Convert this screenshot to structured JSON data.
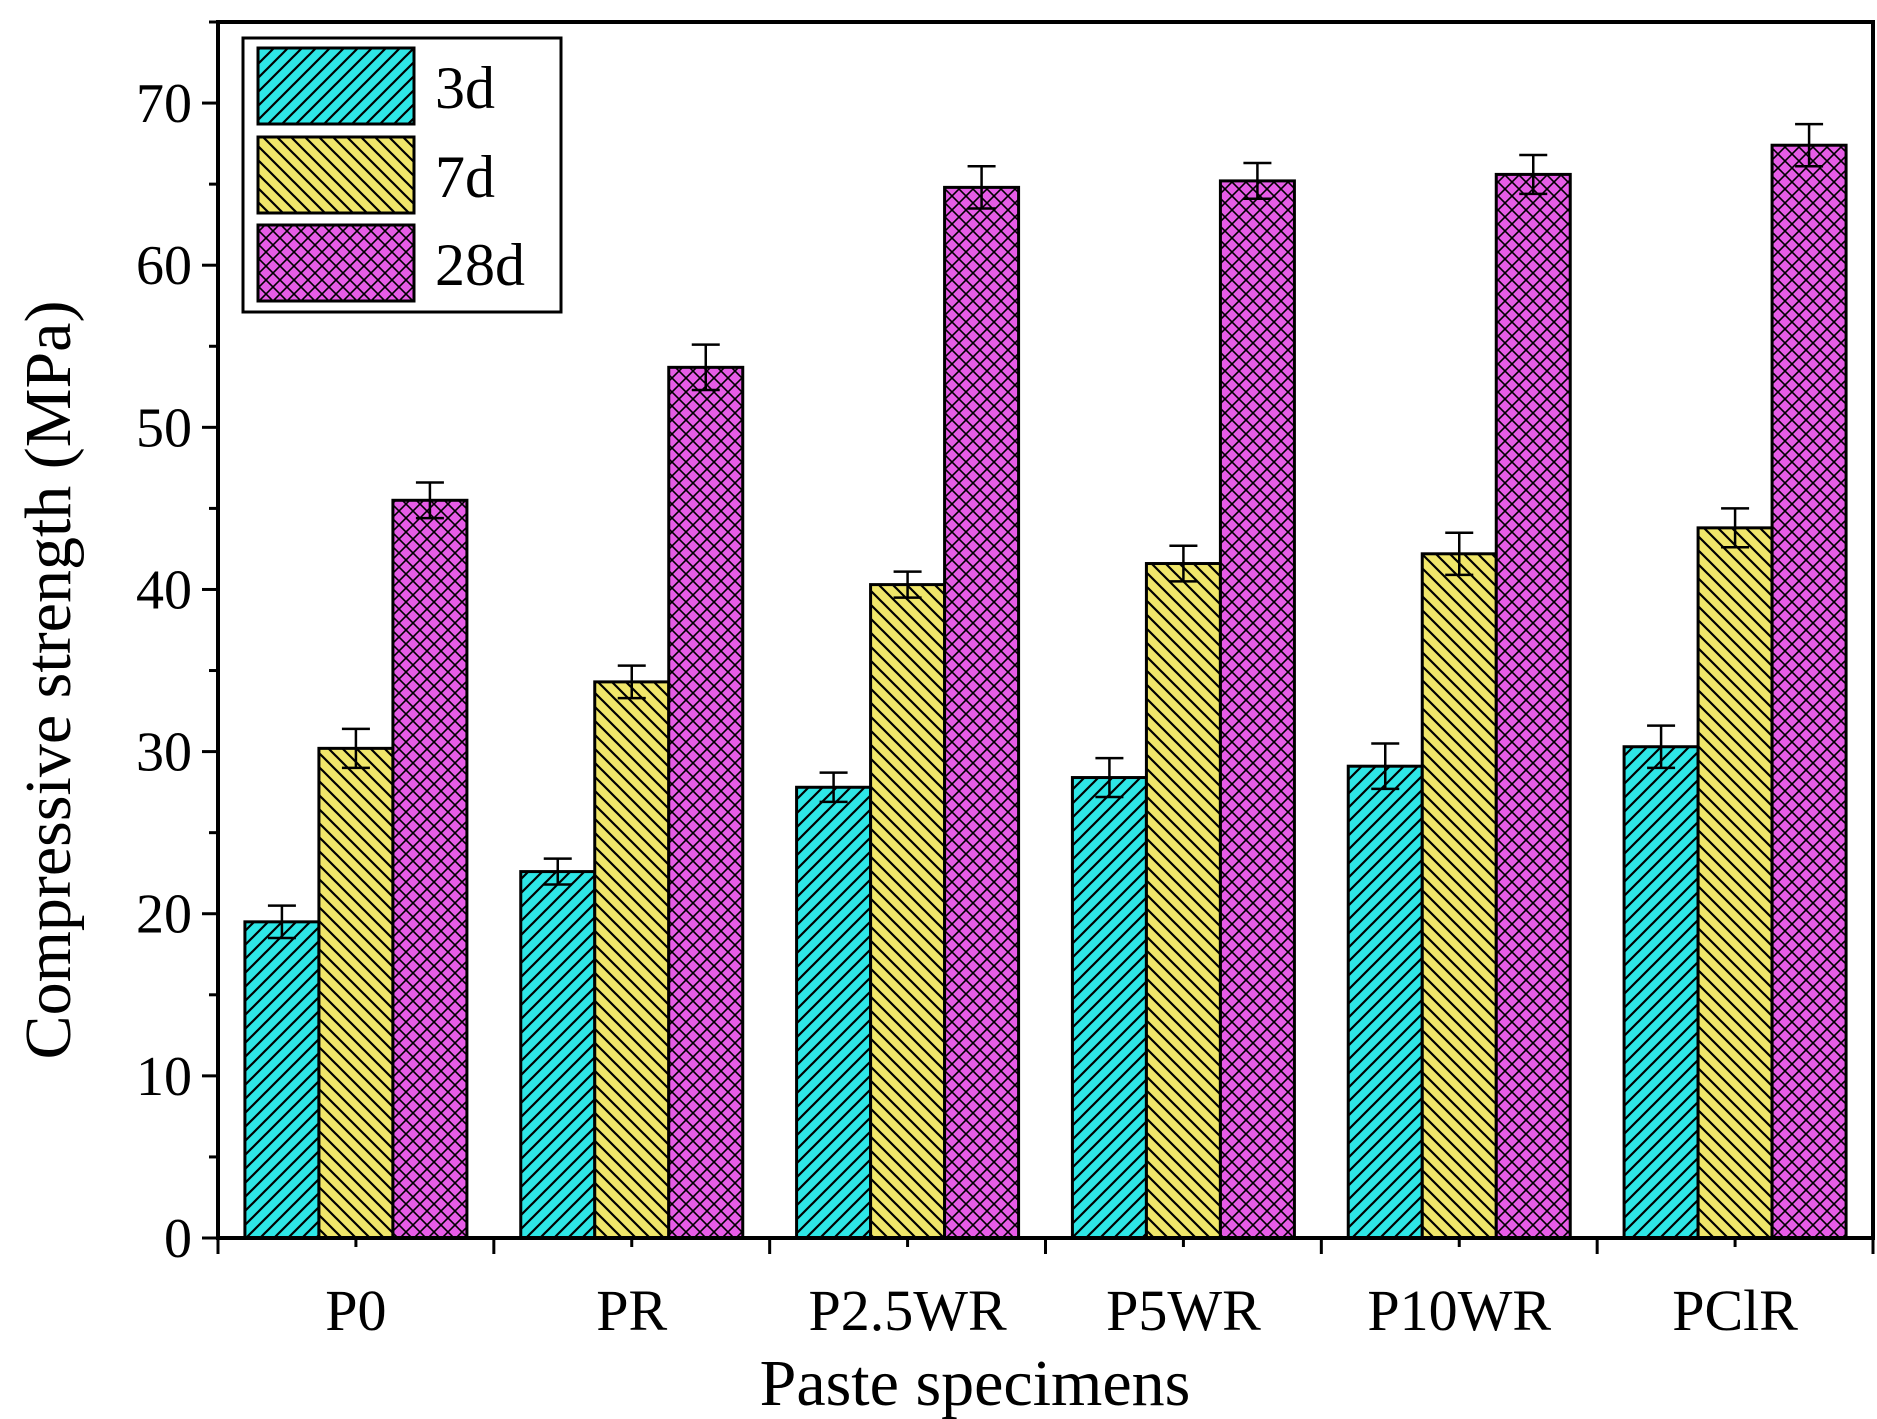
{
  "chart_data": {
    "type": "bar",
    "title": "",
    "xlabel": "Paste specimens",
    "ylabel": "Compressive strength (MPa)",
    "ylim": [
      0,
      75
    ],
    "yticks": [
      0,
      10,
      20,
      30,
      40,
      50,
      60,
      70
    ],
    "grid": false,
    "legend_position": "top-left",
    "categories": [
      "P0",
      "PR",
      "P2.5WR",
      "P5WR",
      "P10WR",
      "PClR"
    ],
    "series": [
      {
        "name": "3d",
        "color": "#2ee6e6",
        "hatch": "diagonal-right",
        "values": [
          19.5,
          22.6,
          27.8,
          28.4,
          29.1,
          30.3
        ],
        "errors": [
          1.0,
          0.8,
          0.9,
          1.2,
          1.4,
          1.3
        ]
      },
      {
        "name": "7d",
        "color": "#f0e66a",
        "hatch": "diagonal-left",
        "values": [
          30.2,
          34.3,
          40.3,
          41.6,
          42.2,
          43.8
        ],
        "errors": [
          1.2,
          1.0,
          0.8,
          1.1,
          1.3,
          1.2
        ]
      },
      {
        "name": "28d",
        "color": "#e65ce6",
        "hatch": "crosshatch",
        "values": [
          45.5,
          53.7,
          64.8,
          65.2,
          65.6,
          67.4
        ],
        "errors": [
          1.1,
          1.4,
          1.3,
          1.1,
          1.2,
          1.3
        ]
      }
    ]
  }
}
